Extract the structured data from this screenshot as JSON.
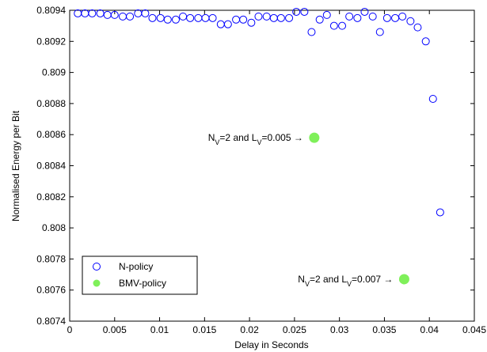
{
  "chart_data": {
    "type": "scatter",
    "xlabel": "Delay in Seconds",
    "ylabel": "Normalised Energy per Bit",
    "xlim": [
      0,
      0.045
    ],
    "ylim": [
      0.8074,
      0.8094
    ],
    "xticks": [
      0,
      0.005,
      0.01,
      0.015,
      0.02,
      0.025,
      0.03,
      0.035,
      0.04,
      0.045
    ],
    "xtick_labels": [
      "0",
      "0.005",
      "0.01",
      "0.015",
      "0.02",
      "0.025",
      "0.03",
      "0.035",
      "0.04",
      "0.045"
    ],
    "yticks": [
      0.8074,
      0.8076,
      0.8078,
      0.808,
      0.8082,
      0.8084,
      0.8086,
      0.8088,
      0.809,
      0.8092,
      0.8094
    ],
    "ytick_labels": [
      "0.8074",
      "0.8076",
      "0.8078",
      "0.808",
      "0.8082",
      "0.8084",
      "0.8086",
      "0.8088",
      "0.809",
      "0.8092",
      "0.8094"
    ],
    "grid": false,
    "legend_position": "bottom-left",
    "series": [
      {
        "name": "N-policy",
        "marker": "open-circle",
        "color": "#0000ff",
        "points": [
          [
            0.0009,
            0.80938
          ],
          [
            0.0017,
            0.80938
          ],
          [
            0.0025,
            0.80938
          ],
          [
            0.0034,
            0.80938
          ],
          [
            0.0042,
            0.80937
          ],
          [
            0.005,
            0.80937
          ],
          [
            0.0059,
            0.80936
          ],
          [
            0.0067,
            0.80936
          ],
          [
            0.0076,
            0.80938
          ],
          [
            0.0084,
            0.80938
          ],
          [
            0.0092,
            0.80935
          ],
          [
            0.0101,
            0.80935
          ],
          [
            0.0109,
            0.80934
          ],
          [
            0.0118,
            0.80934
          ],
          [
            0.0126,
            0.80936
          ],
          [
            0.0134,
            0.80935
          ],
          [
            0.0143,
            0.80935
          ],
          [
            0.0151,
            0.80935
          ],
          [
            0.0159,
            0.80935
          ],
          [
            0.0168,
            0.80931
          ],
          [
            0.0176,
            0.80931
          ],
          [
            0.0185,
            0.80934
          ],
          [
            0.0193,
            0.80934
          ],
          [
            0.0202,
            0.80932
          ],
          [
            0.021,
            0.80936
          ],
          [
            0.0219,
            0.80936
          ],
          [
            0.0227,
            0.80935
          ],
          [
            0.0235,
            0.80935
          ],
          [
            0.0244,
            0.80935
          ],
          [
            0.0252,
            0.80939
          ],
          [
            0.0261,
            0.80939
          ],
          [
            0.0269,
            0.80926
          ],
          [
            0.0278,
            0.80934
          ],
          [
            0.0286,
            0.80937
          ],
          [
            0.0294,
            0.8093
          ],
          [
            0.0303,
            0.8093
          ],
          [
            0.0311,
            0.80936
          ],
          [
            0.032,
            0.80935
          ],
          [
            0.0328,
            0.80939
          ],
          [
            0.0337,
            0.80936
          ],
          [
            0.0345,
            0.80926
          ],
          [
            0.0353,
            0.80935
          ],
          [
            0.0362,
            0.80935
          ],
          [
            0.037,
            0.80936
          ],
          [
            0.0379,
            0.80933
          ],
          [
            0.0387,
            0.80929
          ],
          [
            0.0396,
            0.8092
          ],
          [
            0.0404,
            0.80883
          ],
          [
            0.0412,
            0.8081
          ]
        ]
      },
      {
        "name": "BMV-policy",
        "marker": "filled-circle",
        "color": "#7ff05a",
        "points": [
          [
            0.0272,
            0.80858
          ],
          [
            0.0372,
            0.80767
          ]
        ]
      }
    ],
    "annotations": [
      {
        "target": 0,
        "prefix": "N",
        "sub1": "V",
        "mid": "=2 and L",
        "sub2": "V",
        "suffix": "=0.005 →",
        "text": "NV=2 and LV=0.005 →"
      },
      {
        "target": 1,
        "prefix": "N",
        "sub1": "V",
        "mid": "=2 and L",
        "sub2": "V",
        "suffix": "=0.007 →",
        "text": "NV=2 and LV=0.007 →"
      }
    ]
  }
}
